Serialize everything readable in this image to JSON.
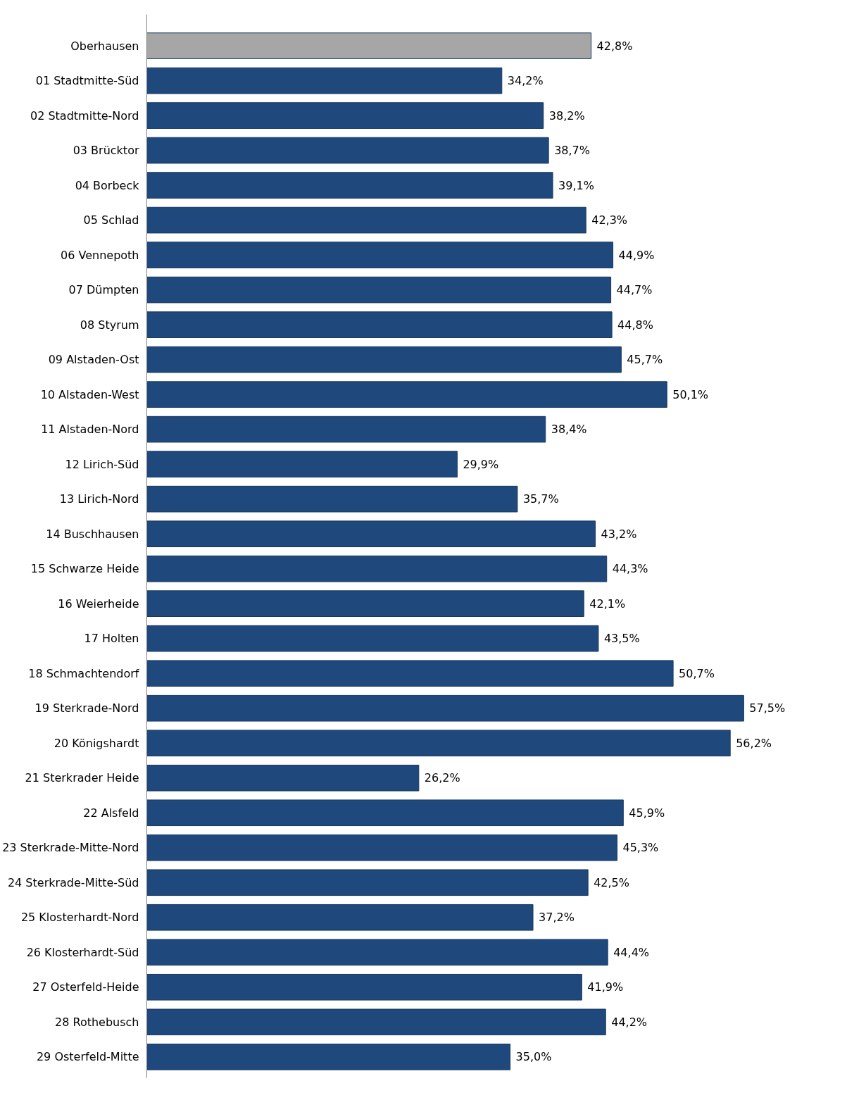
{
  "chart_data": {
    "type": "bar",
    "orientation": "horizontal",
    "data_labels": true,
    "categories": [
      "Oberhausen",
      "01 Stadtmitte-Süd",
      "02 Stadtmitte-Nord",
      "03 Brücktor",
      "04 Borbeck",
      "05 Schlad",
      "06 Vennepoth",
      "07 Dümpten",
      "08 Styrum",
      "09 Alstaden-Ost",
      "10 Alstaden-West",
      "11 Alstaden-Nord",
      "12 Lirich-Süd",
      "13 Lirich-Nord",
      "14 Buschhausen",
      "15 Schwarze Heide",
      "16 Weierheide",
      "17 Holten",
      "18 Schmachtendorf",
      "19 Sterkrade-Nord",
      "20 Königshardt",
      "21 Sterkrader Heide",
      "22 Alsfeld",
      "23 Sterkrade-Mitte-Nord",
      "24 Sterkrade-Mitte-Süd",
      "25 Klosterhardt-Nord",
      "26 Klosterhardt-Süd",
      "27 Osterfeld-Heide",
      "28 Rothebusch",
      "29 Osterfeld-Mitte"
    ],
    "values": [
      42.8,
      34.2,
      38.2,
      38.7,
      39.1,
      42.3,
      44.9,
      44.7,
      44.8,
      45.7,
      50.1,
      38.4,
      29.9,
      35.7,
      43.2,
      44.3,
      42.1,
      43.5,
      50.7,
      57.5,
      56.2,
      26.2,
      45.9,
      45.3,
      42.5,
      37.2,
      44.4,
      41.9,
      44.2,
      35.0
    ],
    "value_labels": [
      "42,8%",
      "34,2%",
      "38,2%",
      "38,7%",
      "39,1%",
      "42,3%",
      "44,9%",
      "44,7%",
      "44,8%",
      "45,7%",
      "50,1%",
      "38,4%",
      "29,9%",
      "35,7%",
      "43,2%",
      "44,3%",
      "42,1%",
      "43,5%",
      "50,7%",
      "57,5%",
      "56,2%",
      "26,2%",
      "45,9%",
      "45,3%",
      "42,5%",
      "37,2%",
      "44,4%",
      "41,9%",
      "44,2%",
      "35,0%"
    ],
    "colors": [
      "#a6a6a6",
      "#1f497d",
      "#1f497d",
      "#1f497d",
      "#1f497d",
      "#1f497d",
      "#1f497d",
      "#1f497d",
      "#1f497d",
      "#1f497d",
      "#1f497d",
      "#1f497d",
      "#1f497d",
      "#1f497d",
      "#1f497d",
      "#1f497d",
      "#1f497d",
      "#1f497d",
      "#1f497d",
      "#1f497d",
      "#1f497d",
      "#1f497d",
      "#1f497d",
      "#1f497d",
      "#1f497d",
      "#1f497d",
      "#1f497d",
      "#1f497d",
      "#1f497d",
      "#1f497d"
    ]
  }
}
